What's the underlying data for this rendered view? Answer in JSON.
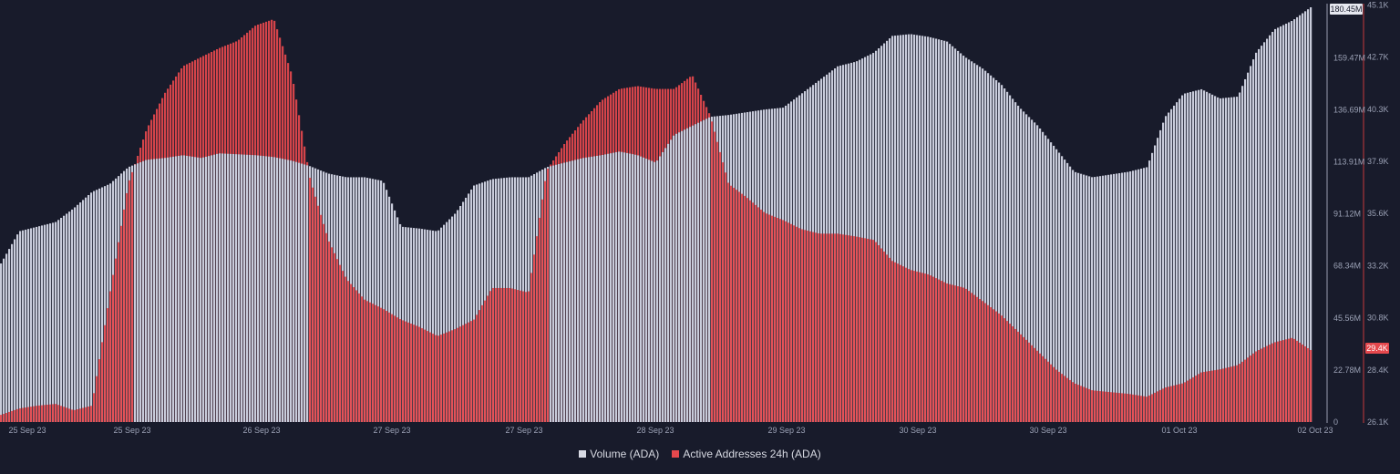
{
  "chart_data": {
    "type": "bar",
    "title": "",
    "x_tick_labels": [
      "25 Sep 23",
      "25 Sep 23",
      "26 Sep 23",
      "27 Sep 23",
      "27 Sep 23",
      "28 Sep 23",
      "29 Sep 23",
      "30 Sep 23",
      "30 Sep 23",
      "01 Oct 23",
      "02 Oct 23"
    ],
    "left_axis": {
      "label": "Volume (ADA)",
      "ticks": [
        "0",
        "22.78M",
        "45.56M",
        "68.34M",
        "91.12M",
        "113.91M",
        "136.69M",
        "159.47M"
      ],
      "ylim": [
        0,
        180.45
      ],
      "unit": "M",
      "current_value": "180.45M"
    },
    "right_axis": {
      "label": "Active Addresses 24h (ADA)",
      "ticks": [
        "26.1K",
        "28.4K",
        "30.8K",
        "33.2K",
        "35.6K",
        "37.9K",
        "40.3K",
        "42.7K",
        "45.1K"
      ],
      "ylim": [
        26.1,
        45.1
      ],
      "unit": "K",
      "current_value": "29.4K"
    },
    "series": [
      {
        "name": "Volume (ADA)",
        "color": "#c9ccdb",
        "unit": "M",
        "values": [
          69.0,
          83.0,
          85.0,
          87.0,
          93.0,
          100.1,
          103.7,
          110.9,
          114.1,
          114.9,
          116.1,
          114.9,
          116.9,
          116.5,
          116.1,
          115.3,
          113.7,
          111.3,
          108.1,
          106.5,
          106.5,
          104.9,
          85.0,
          84.2,
          83.0,
          91.0,
          102.9,
          105.7,
          106.5,
          106.5,
          110.9,
          112.9,
          114.9,
          116.1,
          117.7,
          116.1,
          112.9,
          124.9,
          128.9,
          132.8,
          133.6,
          134.8,
          136.0,
          136.8,
          142.8,
          148.8,
          154.8,
          156.8,
          160.8,
          168.0,
          168.8,
          167.6,
          165.6,
          158.8,
          153.6,
          146.8,
          136.8,
          128.9,
          118.9,
          108.9,
          106.5,
          107.7,
          108.9,
          110.9,
          132.8,
          142.8,
          144.8,
          140.8,
          141.6,
          160.8,
          170.8,
          174.7,
          180.45
        ]
      },
      {
        "name": "Active Addresses 24h (ADA)",
        "color": "#e5484d",
        "unit": "K",
        "values": [
          26.43,
          26.72,
          26.85,
          26.93,
          26.64,
          26.85,
          32.03,
          37.01,
          39.5,
          41.16,
          42.4,
          42.82,
          43.23,
          43.56,
          44.27,
          44.56,
          41.99,
          37.22,
          34.44,
          32.65,
          31.7,
          31.29,
          30.79,
          30.46,
          30.04,
          30.37,
          30.79,
          32.24,
          32.24,
          32.03,
          37.63,
          38.88,
          39.91,
          40.83,
          41.36,
          41.49,
          41.36,
          41.36,
          41.99,
          40.12,
          37.01,
          36.39,
          35.68,
          35.35,
          34.94,
          34.73,
          34.73,
          34.6,
          34.44,
          33.48,
          33.07,
          32.86,
          32.45,
          32.24,
          31.62,
          30.99,
          30.17,
          29.34,
          28.51,
          27.88,
          27.55,
          27.47,
          27.39,
          27.26,
          27.68,
          27.88,
          28.38,
          28.51,
          28.71,
          29.34,
          29.75,
          29.96,
          29.4
        ]
      }
    ],
    "legend_position": "bottom-center",
    "grid": false
  }
}
